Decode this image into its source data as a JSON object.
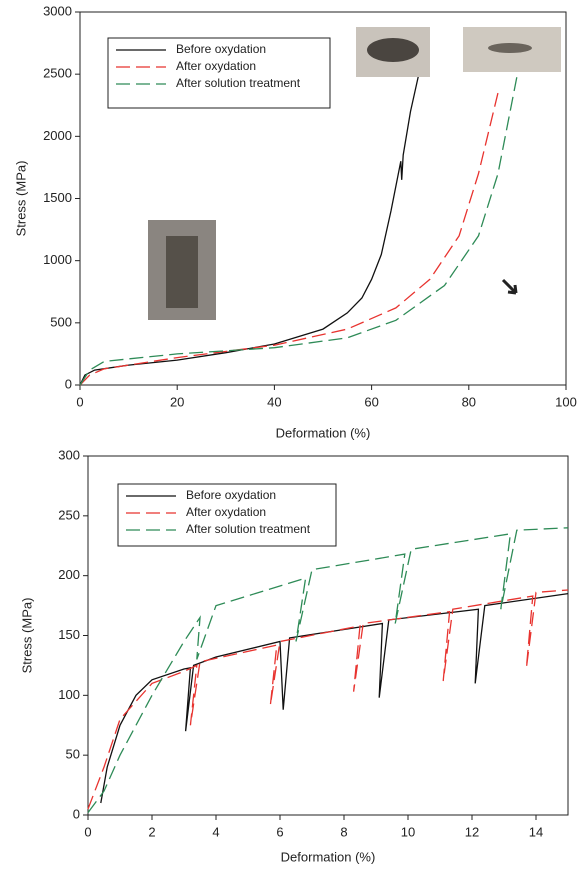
{
  "chart_data": [
    {
      "type": "line",
      "x_label": "Deformation (%)",
      "y_label": "Stress (MPa)",
      "xlim": [
        0,
        100
      ],
      "ylim": [
        0,
        3000
      ],
      "xticks": [
        0,
        20,
        40,
        60,
        80,
        100
      ],
      "yticks": [
        0,
        500,
        1000,
        1500,
        2000,
        2500,
        3000
      ],
      "legend": "upper left",
      "series": [
        {
          "name": "Before oxydation",
          "color": "#111111",
          "linestyle": "solid",
          "x": [
            0,
            1,
            3,
            10,
            20,
            30,
            40,
            50,
            55,
            58,
            60,
            62,
            64,
            66,
            66.2,
            66.5,
            68,
            70
          ],
          "values": [
            0,
            80,
            120,
            160,
            200,
            260,
            330,
            450,
            580,
            700,
            850,
            1050,
            1400,
            1800,
            1650,
            1850,
            2200,
            2550
          ]
        },
        {
          "name": "After oxydation",
          "color": "#e8332f",
          "linestyle": "dashed",
          "x": [
            0,
            2,
            5,
            20,
            40,
            55,
            65,
            72,
            78,
            82,
            86
          ],
          "values": [
            0,
            80,
            130,
            220,
            320,
            450,
            620,
            850,
            1200,
            1700,
            2350
          ]
        },
        {
          "name": "After solution treatment",
          "color": "#2e8b57",
          "linestyle": "dashed",
          "x": [
            0,
            2,
            5,
            20,
            40,
            55,
            65,
            75,
            82,
            86,
            90
          ],
          "values": [
            0,
            120,
            190,
            250,
            300,
            380,
            520,
            800,
            1200,
            1700,
            2500
          ]
        }
      ]
    },
    {
      "type": "line",
      "x_label": "Deformation (%)",
      "y_label": "Stress (MPa)",
      "xlim": [
        0,
        15
      ],
      "ylim": [
        0,
        300
      ],
      "xticks": [
        0,
        2,
        4,
        6,
        8,
        10,
        12,
        14
      ],
      "yticks": [
        0,
        50,
        100,
        150,
        200,
        250,
        300
      ],
      "legend": "upper left",
      "series": [
        {
          "name": "Before oxydation",
          "color": "#111111",
          "linestyle": "solid",
          "x": [
            0.4,
            0.6,
            1,
            1.5,
            2,
            3,
            3.2,
            3.05,
            3.3,
            4,
            6,
            6.1,
            6.3,
            8,
            9.2,
            9.1,
            9.4,
            12.2,
            12.1,
            12.4,
            15
          ],
          "values": [
            10,
            40,
            75,
            100,
            113,
            122,
            123,
            70,
            125,
            132,
            145,
            88,
            148,
            155,
            160,
            98,
            163,
            172,
            110,
            175,
            185
          ]
        },
        {
          "name": "After oxydation",
          "color": "#e8332f",
          "linestyle": "dashed",
          "x": [
            0,
            0.5,
            1,
            2,
            3,
            3.4,
            3.2,
            3.5,
            5.9,
            5.7,
            6,
            8.5,
            8.3,
            8.6,
            11.3,
            11.1,
            11.4,
            13.9,
            13.7,
            14,
            15
          ],
          "values": [
            5,
            40,
            80,
            110,
            120,
            125,
            75,
            128,
            142,
            92,
            145,
            158,
            103,
            160,
            170,
            112,
            172,
            183,
            123,
            186,
            188
          ]
        },
        {
          "name": "After solution treatment",
          "color": "#2e8b57",
          "linestyle": "dashed",
          "x": [
            0,
            0.5,
            1,
            2,
            3,
            3.5,
            3.4,
            4,
            6.8,
            6.5,
            7,
            9.9,
            9.6,
            10.1,
            13.2,
            12.9,
            13.4,
            15
          ],
          "values": [
            2,
            20,
            50,
            100,
            145,
            165,
            130,
            175,
            198,
            145,
            205,
            218,
            160,
            222,
            235,
            172,
            238,
            240
          ]
        }
      ]
    }
  ]
}
